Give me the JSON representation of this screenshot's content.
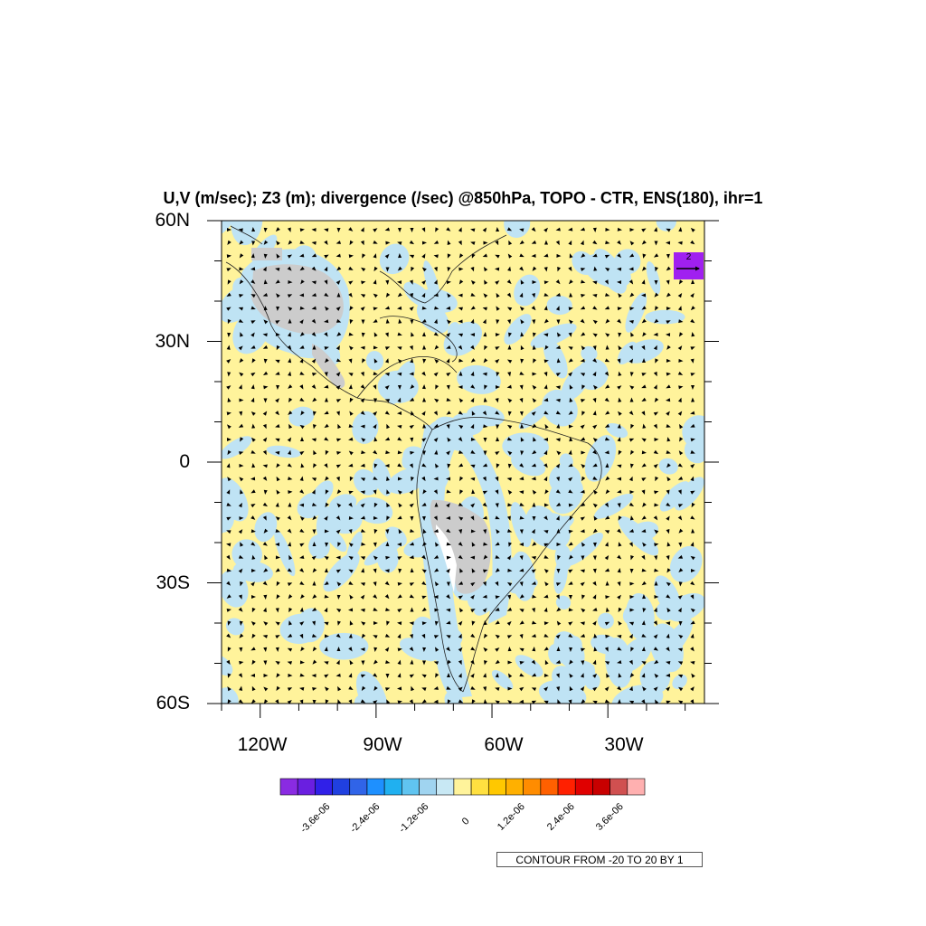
{
  "title": "U,V (m/sec); Z3 (m); divergence (/sec) @850hPa, TOPO - CTR, ENS(180), ihr=1",
  "map": {
    "lat_labels": [
      "60N",
      "30N",
      "0",
      "30S",
      "60S"
    ],
    "lon_labels": [
      "120W",
      "90W",
      "60W",
      "30W"
    ],
    "lat_range": [
      -60,
      60
    ],
    "lon_range": [
      -130,
      -5
    ],
    "colors": {
      "positive_fill": "#fff39b",
      "negative_fill": "#bfe3f4",
      "topography_mask": "#cccccc",
      "arrow": "#000000"
    }
  },
  "reference_vector": {
    "label": "2",
    "color": "#a020f0"
  },
  "colorbar": {
    "colors": [
      "#8a2be2",
      "#6a1fe0",
      "#3020e8",
      "#2040e0",
      "#3064e8",
      "#1e90ff",
      "#20b0f0",
      "#60c4f0",
      "#a0d4f0",
      "#c8e8f4",
      "#fff39b",
      "#ffe040",
      "#ffc800",
      "#ffb000",
      "#ff8c00",
      "#ff6000",
      "#ff2000",
      "#e00000",
      "#c80000",
      "#d05050",
      "#ffb0b0"
    ],
    "labels": [
      "-3.6e-06",
      "-2.4e-06",
      "-1.2e-06",
      "0",
      "1.2e-06",
      "2.4e-06",
      "3.6e-06"
    ]
  },
  "contour_note": "CONTOUR FROM -20 TO 20 BY 1"
}
